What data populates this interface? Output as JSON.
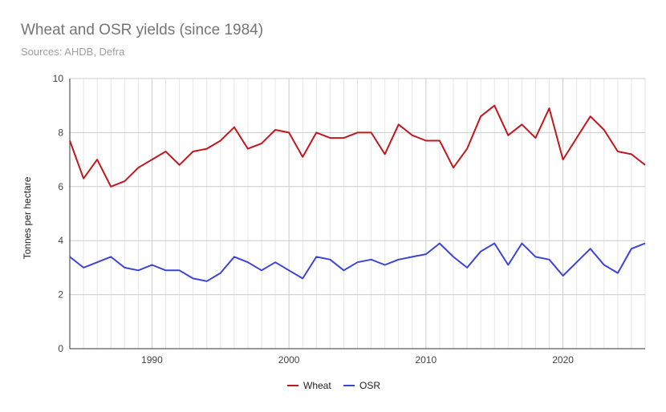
{
  "chart_data": {
    "type": "line",
    "title": "Wheat and OSR yields (since 1984)",
    "subtitle": "Sources: AHDB, Defra",
    "xlabel": "",
    "ylabel": "Tonnes per hectare",
    "xlim": [
      1984,
      2026
    ],
    "ylim": [
      0,
      10
    ],
    "x_ticks": [
      1990,
      2000,
      2010,
      2020
    ],
    "y_ticks": [
      0,
      2,
      4,
      6,
      8,
      10
    ],
    "grid": true,
    "legend": "bottom",
    "x": [
      1984,
      1985,
      1986,
      1987,
      1988,
      1989,
      1990,
      1991,
      1992,
      1993,
      1994,
      1995,
      1996,
      1997,
      1998,
      1999,
      2000,
      2001,
      2002,
      2003,
      2004,
      2005,
      2006,
      2007,
      2008,
      2009,
      2010,
      2011,
      2012,
      2013,
      2014,
      2015,
      2016,
      2017,
      2018,
      2019,
      2020,
      2021,
      2022,
      2023,
      2024,
      2025,
      2026
    ],
    "series": [
      {
        "name": "Wheat",
        "color": "#c0181e",
        "values": [
          7.7,
          6.3,
          7.0,
          6.0,
          6.2,
          6.7,
          7.0,
          7.3,
          6.8,
          7.3,
          7.4,
          7.7,
          8.2,
          7.4,
          7.6,
          8.1,
          8.0,
          7.1,
          8.0,
          7.8,
          7.8,
          8.0,
          8.0,
          7.2,
          8.3,
          7.9,
          7.7,
          7.7,
          6.7,
          7.4,
          8.6,
          9.0,
          7.9,
          8.3,
          7.8,
          8.9,
          7.0,
          7.8,
          8.6,
          8.1,
          7.3,
          7.2,
          6.8
        ]
      },
      {
        "name": "OSR",
        "color": "#3c43d8",
        "values": [
          3.4,
          3.0,
          3.2,
          3.4,
          3.0,
          2.9,
          3.1,
          2.9,
          2.9,
          2.6,
          2.5,
          2.8,
          3.4,
          3.2,
          2.9,
          3.2,
          2.9,
          2.6,
          3.4,
          3.3,
          2.9,
          3.2,
          3.3,
          3.1,
          3.3,
          3.4,
          3.5,
          3.9,
          3.4,
          3.0,
          3.6,
          3.9,
          3.1,
          3.9,
          3.4,
          3.3,
          2.7,
          3.2,
          3.7,
          3.1,
          2.8,
          3.7,
          3.9
        ]
      }
    ]
  }
}
